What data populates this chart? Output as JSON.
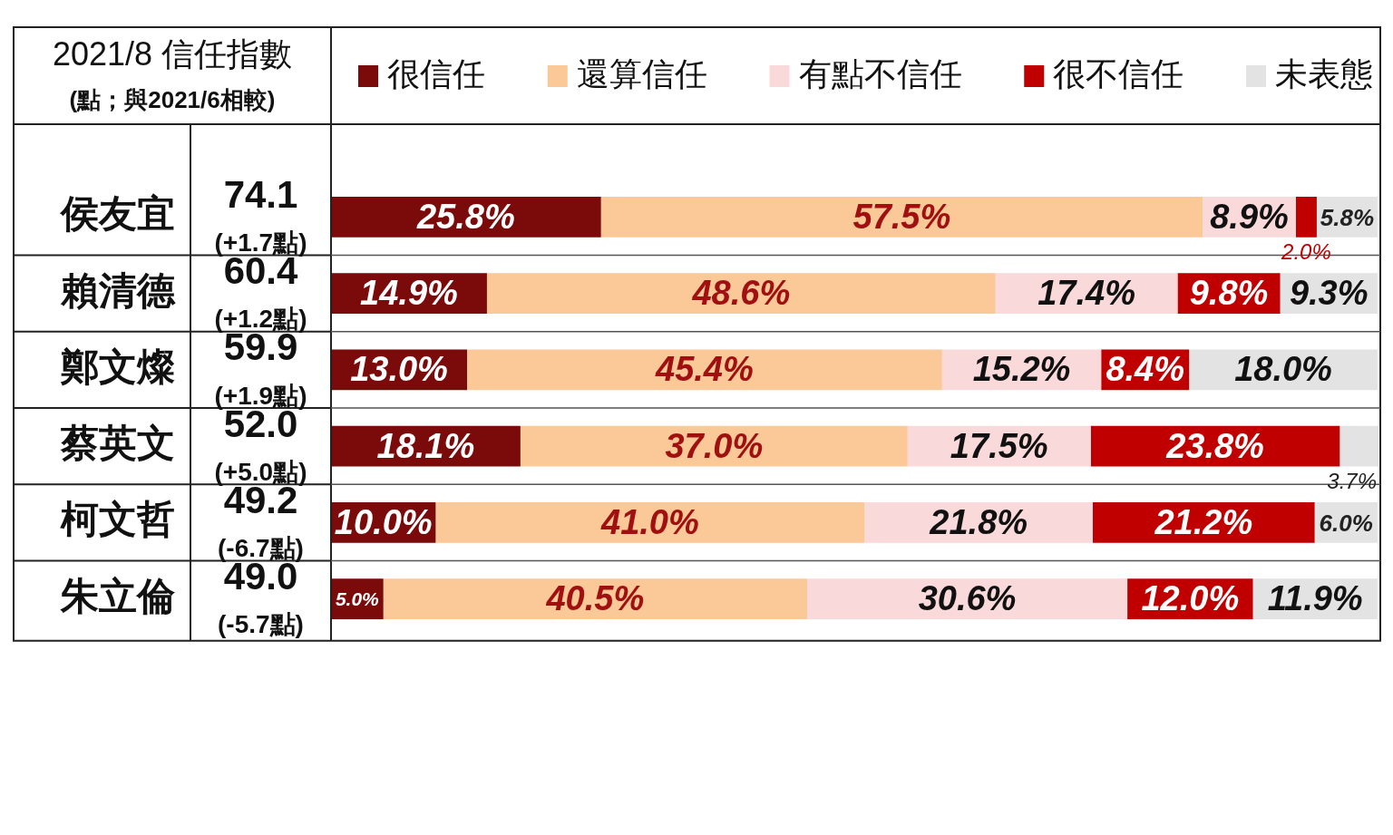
{
  "chart_data": {
    "type": "bar",
    "orientation": "horizontal",
    "stacked": true,
    "title": "2021/8 信任指數",
    "subtitle": "(點；與2021/6相較)",
    "categories": [
      "侯友宜",
      "賴清德",
      "鄭文燦",
      "蔡英文",
      "柯文哲",
      "朱立倫"
    ],
    "xlim": [
      0,
      100.1
    ],
    "tick_labels": "y",
    "grid": false,
    "legend": "top",
    "series": [
      {
        "name": "很信任",
        "color": "#7b0a0a",
        "values": [
          25.8,
          14.9,
          13.0,
          18.1,
          10.0,
          5.0
        ],
        "value_labels": [
          "25.8%",
          "14.9%",
          "13.0%",
          "18.1%",
          "10.0%",
          "5.0%"
        ]
      },
      {
        "name": "還算信任",
        "color": "#fbc898",
        "values": [
          57.5,
          48.6,
          45.4,
          37.0,
          41.0,
          40.5
        ],
        "value_labels": [
          "57.5%",
          "48.6%",
          "45.4%",
          "37.0%",
          "41.0%",
          "40.5%"
        ]
      },
      {
        "name": "有點不信任",
        "color": "#f9d9d9",
        "values": [
          8.9,
          17.4,
          15.2,
          17.5,
          21.8,
          30.6
        ],
        "value_labels": [
          "8.9%",
          "17.4%",
          "15.2%",
          "17.5%",
          "21.8%",
          "30.6%"
        ]
      },
      {
        "name": "很不信任",
        "color": "#c00000",
        "values": [
          2.0,
          9.8,
          8.4,
          23.8,
          21.2,
          12.0
        ],
        "value_labels": [
          "2.0%",
          "9.8%",
          "8.4%",
          "23.8%",
          "21.2%",
          "12.0%"
        ]
      },
      {
        "name": "未表態",
        "color": "#e3e3e3",
        "values": [
          5.8,
          9.3,
          18.0,
          3.7,
          6.0,
          11.9
        ],
        "value_labels": [
          "5.8%",
          "9.3%",
          "18.0%",
          "3.7%",
          "6.0%",
          "11.9%"
        ]
      }
    ],
    "annotations": [
      "74.1",
      "(+1.7點)",
      "60.4",
      "(+1.2點)",
      "59.9",
      "(+1.9點)",
      "52.0",
      "(+5.0點)",
      "49.2",
      "(-6.7點)",
      "49.0",
      "(-5.7點)"
    ]
  }
}
